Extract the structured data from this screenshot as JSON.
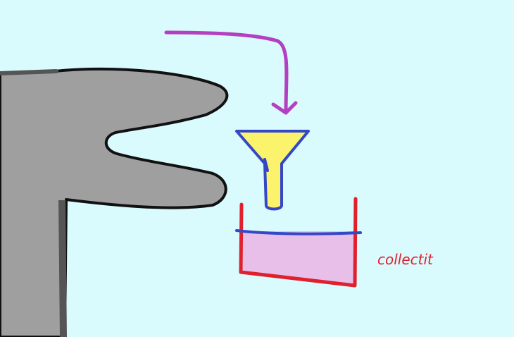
{
  "diagram": {
    "collector_label": "collectit",
    "colors": {
      "background": "#d9fbfd",
      "hand_fill": "#9f9f9f",
      "hand_outline": "#111111",
      "arrow": "#b43fc1",
      "funnel_fill": "#fbf36c",
      "funnel_outline": "#3347c7",
      "tray_fill": "#e7bfe8",
      "tray_outline": "#e0202c",
      "liquid_line": "#3347c7",
      "label": "#e0202c"
    },
    "icons": [
      "hand-shape",
      "curved-arrow-icon",
      "funnel-icon",
      "collection-tray"
    ]
  }
}
